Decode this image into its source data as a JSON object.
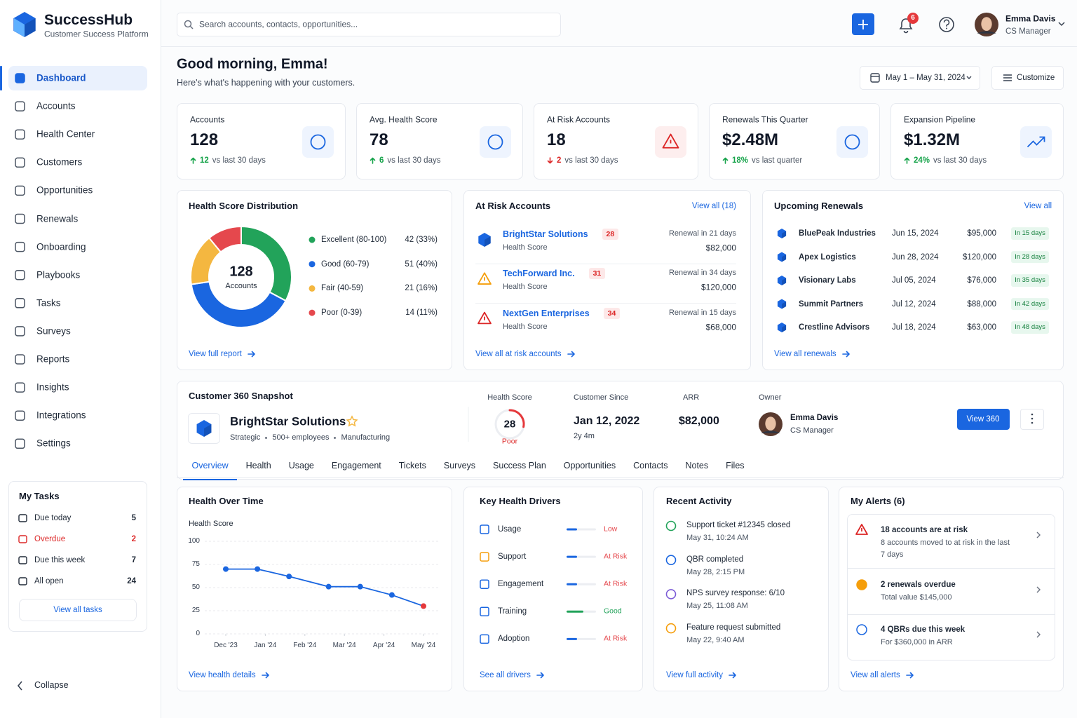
{
  "brand": {
    "name": "SuccessHub",
    "tagline": "Customer Success Platform"
  },
  "nav": [
    "Dashboard",
    "Accounts",
    "Health Center",
    "Customers",
    "Opportunities",
    "Renewals",
    "Onboarding",
    "Playbooks",
    "Tasks",
    "Surveys",
    "Reports",
    "Insights",
    "Integrations",
    "Settings"
  ],
  "my_tasks": {
    "title": "My Tasks",
    "items": [
      {
        "label": "Due today",
        "count": 5,
        "color": "#1f2937"
      },
      {
        "label": "Overdue",
        "count": 2,
        "color": "#dc2626"
      },
      {
        "label": "Due this week",
        "count": 7,
        "color": "#1f2937"
      },
      {
        "label": "All open",
        "count": 24,
        "color": "#1f2937"
      }
    ],
    "button": "View all tasks"
  },
  "collapse": "Collapse",
  "search_placeholder": "Search accounts, contacts, opportunities...",
  "notification_count": 6,
  "user": {
    "name": "Emma Davis",
    "role": "CS Manager"
  },
  "greeting": "Good morning, Emma!",
  "greeting_sub": "Here's what's happening with your customers.",
  "date_range": "May 1 – May 31, 2024",
  "customize": "Customize",
  "kpis": [
    {
      "label": "Accounts",
      "value": "128",
      "delta": "12",
      "direction": "up",
      "note": "vs last 30 days"
    },
    {
      "label": "Avg. Health Score",
      "value": "78",
      "delta": "6",
      "direction": "up",
      "note": "vs last 30 days"
    },
    {
      "label": "At Risk Accounts",
      "value": "18",
      "delta": "2",
      "direction": "down",
      "note": "vs last 30 days"
    },
    {
      "label": "Renewals This Quarter",
      "value": "$2.48M",
      "delta": "18%",
      "direction": "up",
      "note": "vs last quarter"
    },
    {
      "label": "Expansion Pipeline",
      "value": "$1.32M",
      "delta": "24%",
      "direction": "up",
      "note": "vs last 30 days"
    }
  ],
  "chart_data": [
    {
      "type": "pie",
      "title": "Health Score Distribution",
      "center_value": 128,
      "center_label": "Accounts",
      "categories": [
        "Excellent (80-100)",
        "Good (60-79)",
        "Fair (40-59)",
        "Poor (0-39)"
      ],
      "values": [
        42,
        51,
        21,
        14
      ],
      "value_labels": [
        "42 (33%)",
        "51 (40%)",
        "21 (16%)",
        "14 (11%)"
      ],
      "colors": [
        "#22a35a",
        "#1a66e0",
        "#f4b740",
        "#e5484d"
      ],
      "link": "View full report"
    },
    {
      "type": "line",
      "title": "Health Over Time",
      "y_label": "Health Score",
      "x": [
        0,
        0.8,
        1.6,
        2.6,
        3.4,
        4.2,
        5
      ],
      "values": [
        70,
        70,
        62,
        51,
        51,
        42,
        30
      ],
      "color": "#1a66e0",
      "last_point_color": "#e5383b",
      "xlim": [
        0,
        5
      ],
      "xticks": [
        {
          "value": 0,
          "label": "Dec '23"
        },
        {
          "value": 1,
          "label": "Jan '24"
        },
        {
          "value": 2,
          "label": "Feb '24"
        },
        {
          "value": 3,
          "label": "Mar '24"
        },
        {
          "value": 4,
          "label": "Apr '24"
        },
        {
          "value": 5,
          "label": "May '24"
        }
      ],
      "ylim": [
        0,
        100
      ],
      "yticks": [
        0,
        25,
        50,
        75,
        100
      ],
      "grid": true,
      "link": "View health details"
    }
  ],
  "at_risk": {
    "title": "At Risk Accounts",
    "view_all": "View all (18)",
    "items": [
      {
        "name": "BrightStar Solutions",
        "score": 28,
        "score_label": "Health Score",
        "renewal": "Renewal in 21 days",
        "arr": "$82,000"
      },
      {
        "name": "TechForward Inc.",
        "score": 31,
        "score_label": "Health Score",
        "renewal": "Renewal in 34 days",
        "arr": "$120,000"
      },
      {
        "name": "NextGen Enterprises",
        "score": 34,
        "score_label": "Health Score",
        "renewal": "Renewal in 15 days",
        "arr": "$68,000"
      }
    ],
    "link": "View all at risk accounts"
  },
  "renewals": {
    "title": "Upcoming Renewals",
    "view_all": "View all",
    "rows": [
      {
        "name": "BluePeak Industries",
        "date": "Jun 15, 2024",
        "amount": "$95,000",
        "badge": "In 15 days"
      },
      {
        "name": "Apex Logistics",
        "date": "Jun 28, 2024",
        "amount": "$120,000",
        "badge": "In 28 days"
      },
      {
        "name": "Visionary Labs",
        "date": "Jul 05, 2024",
        "amount": "$76,000",
        "badge": "In 35 days"
      },
      {
        "name": "Summit Partners",
        "date": "Jul 12, 2024",
        "amount": "$88,000",
        "badge": "In 42 days"
      },
      {
        "name": "Crestline Advisors",
        "date": "Jul 18, 2024",
        "amount": "$63,000",
        "badge": "In 48 days"
      }
    ],
    "link": "View all renewals"
  },
  "snapshot": {
    "title": "Customer 360 Snapshot",
    "name": "BrightStar Solutions",
    "tags": [
      "Strategic",
      "500+ employees",
      "Manufacturing"
    ],
    "health_label": "Health Score",
    "health_score": 28,
    "health_status": "Poor",
    "since_label": "Customer Since",
    "since": "Jan 12, 2022",
    "tenure": "2y 4m",
    "arr_label": "ARR",
    "arr": "$82,000",
    "owner_label": "Owner",
    "owner_name": "Emma Davis",
    "owner_role": "CS Manager",
    "button": "View 360",
    "tabs": [
      "Overview",
      "Health",
      "Usage",
      "Engagement",
      "Tickets",
      "Surveys",
      "Success Plan",
      "Opportunities",
      "Contacts",
      "Notes",
      "Files"
    ]
  },
  "drivers": {
    "title": "Key Health Drivers",
    "items": [
      {
        "name": "Usage",
        "status": "Low",
        "color": "#e5484d"
      },
      {
        "name": "Support",
        "status": "At Risk",
        "color": "#e5484d"
      },
      {
        "name": "Engagement",
        "status": "At Risk",
        "color": "#e5484d"
      },
      {
        "name": "Training",
        "status": "Good",
        "color": "#22a35a"
      },
      {
        "name": "Adoption",
        "status": "At Risk",
        "color": "#e5484d"
      }
    ],
    "link": "See all drivers"
  },
  "activity": {
    "title": "Recent Activity",
    "items": [
      {
        "title": "Support ticket #12345 closed",
        "time": "May 31, 10:24 AM"
      },
      {
        "title": "QBR completed",
        "time": "May 28, 2:15 PM"
      },
      {
        "title": "NPS survey response: 6/10",
        "time": "May 25, 11:08 AM"
      },
      {
        "title": "Feature request submitted",
        "time": "May 22, 9:40 AM"
      }
    ],
    "link": "View full activity"
  },
  "alerts": {
    "title": "My Alerts (6)",
    "items": [
      {
        "title": "18 accounts are at risk",
        "sub": "8 accounts moved to at risk in the last 7 days"
      },
      {
        "title": "2 renewals overdue",
        "sub": "Total value $145,000"
      },
      {
        "title": "4 QBRs due this week",
        "sub": "For $360,000 in ARR"
      }
    ],
    "link": "View all alerts"
  }
}
